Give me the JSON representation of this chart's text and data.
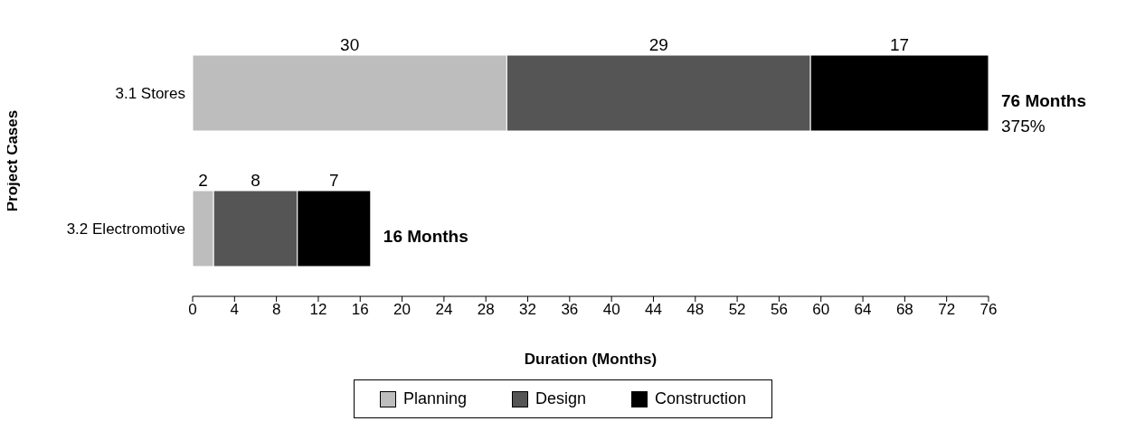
{
  "chart_data": {
    "type": "bar",
    "orientation": "horizontal",
    "stacked": true,
    "xlabel": "Duration (Months)",
    "ylabel": "Project Cases",
    "categories": [
      "3.1 Stores",
      "3.2 Electromotive"
    ],
    "series": [
      {
        "name": "Planning",
        "color": "#bdbdbd",
        "values": [
          30,
          2
        ]
      },
      {
        "name": "Design",
        "color": "#555555",
        "values": [
          29,
          8
        ]
      },
      {
        "name": "Construction",
        "color": "#000000",
        "values": [
          17,
          7
        ]
      }
    ],
    "xlim": [
      0,
      76
    ],
    "xticks": [
      0,
      4,
      8,
      12,
      16,
      20,
      24,
      28,
      32,
      36,
      40,
      44,
      48,
      52,
      56,
      60,
      64,
      68,
      72,
      76
    ],
    "data_labels": true,
    "legend": "bottom",
    "grid": false,
    "annotations": [
      {
        "text": "76 Months",
        "x": 76,
        "y": "3.1 Stores"
      },
      "375%",
      {
        "text": "16 Months",
        "x": 17,
        "y": "3.2 Electromotive"
      }
    ]
  }
}
